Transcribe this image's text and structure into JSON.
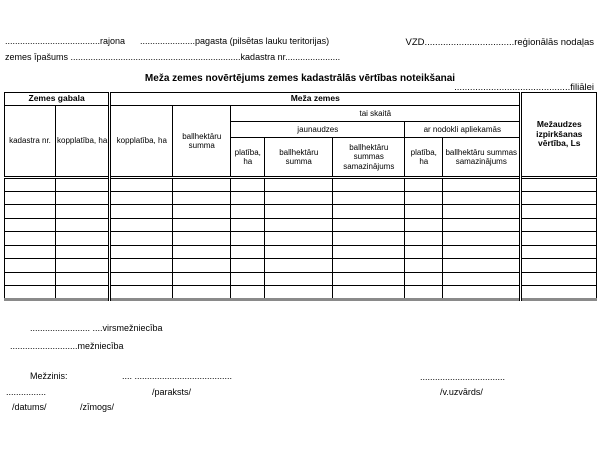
{
  "doc": {
    "top_right": {
      "line1": "VZD..................................reģionālās nodaļas",
      "line2": "............................................filiālei"
    },
    "location": {
      "line1": "......................................rajona      ......................pagasta (pilsētas lauku teritorijas)",
      "line2": "zemes īpašums ....................................................................kadastra nr......................"
    },
    "title": "Meža zemes novērtējums zemes kadastrālās vērtības noteikšanai",
    "table": {
      "header": {
        "zemes_gabala": "Zemes gabala",
        "meza_zemes": "Meža zemes",
        "mezaudzes_vertiba": "Mežaudzes izpirkšanas vērtība, Ls",
        "kadastra_nr": "kadastra nr.",
        "kopplatiba_gabala": "kopplatība, ha",
        "kopplatiba_meza": "kopplatība, ha",
        "ballhektaru_summa": "ballhektāru summa",
        "tai_skaita": "tai skaitā",
        "jaunaudzes": "jaunaudzes",
        "ar_nodokli": "ar nodokli apliekamās",
        "jaun_platiba": "platība, ha",
        "jaun_ballhektaru_summa": "ballhektāru summa",
        "jaun_samazinajums": "ballhektāru summas samazinājums",
        "nodokli_platiba": "platība, ha",
        "nodokli_samazinajums": "ballhektāru summas samazinājums"
      },
      "empty_row_count": 9,
      "column_count": 10
    },
    "footer": {
      "virsmezhnieciba": "........................ ....virsmežniecība",
      "mezhnieciba": "...........................mežniecība",
      "mezzinis_label": "Mežzinis:",
      "mezzinis_dots": ".... .......................................",
      "name_dots": "..................................",
      "date_dots": "................",
      "paraksts": "/paraksts/",
      "v_uzvards": "/v.uzvārds/",
      "datums": "/datums/",
      "zimogs": "/zīmogs/"
    }
  }
}
